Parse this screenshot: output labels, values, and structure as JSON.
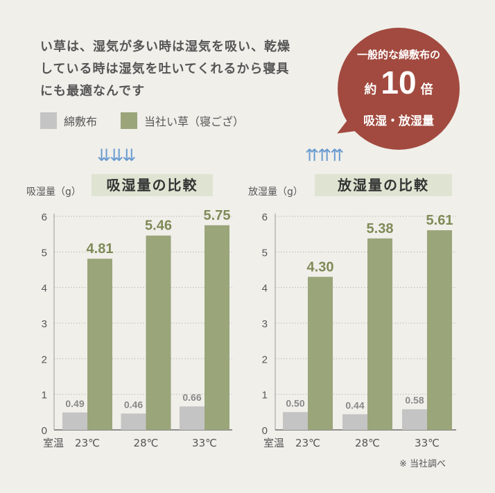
{
  "intro": {
    "line1": "い草は、湿気が多い時は湿気を吸い、乾燥",
    "line2": "している時は湿気を吐いてくれるから寝具",
    "line3": "にも最適なんです"
  },
  "legend": [
    {
      "label": "綿敷布",
      "color": "#c4c4c4"
    },
    {
      "label": "当社い草（寝ござ）",
      "color": "#9aa57a"
    }
  ],
  "badge": {
    "line1": "一般的な綿敷布の",
    "prefix": "約",
    "number": "10",
    "suffix": "倍",
    "line3": "吸湿・放湿量"
  },
  "arrows": {
    "down": "⇊⇊⇊",
    "up": "⇈⇈⇈"
  },
  "note": "※ 当社調べ",
  "chart_data": [
    {
      "type": "bar",
      "title": "吸湿量の比較",
      "ylabel": "吸湿量（g）",
      "xlabel_prefix": "室温",
      "categories": [
        "23℃",
        "28℃",
        "33℃"
      ],
      "ylim": [
        0,
        6
      ],
      "yticks": [
        0,
        1,
        2,
        3,
        4,
        5,
        6
      ],
      "series": [
        {
          "name": "綿敷布",
          "values": [
            0.49,
            0.46,
            0.66
          ],
          "labels": [
            "0.49",
            "0.46",
            "0.66"
          ],
          "color": "#c4c4c4"
        },
        {
          "name": "当社い草（寝ござ）",
          "values": [
            4.81,
            5.46,
            5.75
          ],
          "labels": [
            "4.81",
            "5.46",
            "5.75"
          ],
          "color": "#9aa57a"
        }
      ],
      "grid": true
    },
    {
      "type": "bar",
      "title": "放湿量の比較",
      "ylabel": "放湿量（g）",
      "xlabel_prefix": "室温",
      "categories": [
        "23℃",
        "28℃",
        "33℃"
      ],
      "ylim": [
        0,
        6
      ],
      "yticks": [
        0,
        1,
        2,
        3,
        4,
        5,
        6
      ],
      "series": [
        {
          "name": "綿敷布",
          "values": [
            0.5,
            0.44,
            0.58
          ],
          "labels": [
            "0.50",
            "0.44",
            "0.58"
          ],
          "color": "#c4c4c4"
        },
        {
          "name": "当社い草（寝ござ）",
          "values": [
            4.3,
            5.38,
            5.61
          ],
          "labels": [
            "4.30",
            "5.38",
            "5.61"
          ],
          "color": "#9aa57a"
        }
      ],
      "grid": true
    }
  ]
}
